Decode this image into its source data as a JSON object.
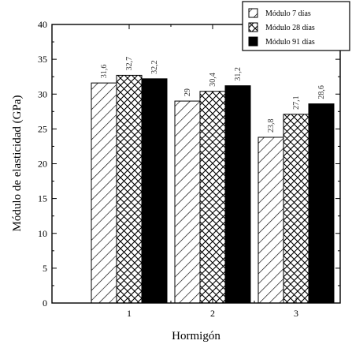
{
  "chart_data": {
    "type": "bar",
    "xlabel": "Hormigón",
    "ylabel": "Módulo de elasticidad (GPa)",
    "categories": [
      "1",
      "2",
      "3"
    ],
    "ylim": [
      0,
      40
    ],
    "yticks": [
      0,
      5,
      10,
      15,
      20,
      25,
      30,
      35,
      40
    ],
    "grid": false,
    "legend_position": "top-right",
    "series": [
      {
        "name": "Módulo 7 días",
        "pattern": "diagonal-hatch",
        "values": [
          31.6,
          29,
          23.8
        ],
        "labels": [
          "31,6",
          "29",
          "23,8"
        ]
      },
      {
        "name": "Módulo 28 días",
        "pattern": "crosshatch",
        "values": [
          32.7,
          30.4,
          27.1
        ],
        "labels": [
          "32,7",
          "30,4",
          "27,1"
        ]
      },
      {
        "name": "Módulo 91 días",
        "pattern": "solid",
        "values": [
          32.2,
          31.2,
          28.6
        ],
        "labels": [
          "32,2",
          "31,2",
          "28,6"
        ]
      }
    ],
    "colors": {
      "fill": "#000000",
      "background": "#ffffff"
    }
  }
}
